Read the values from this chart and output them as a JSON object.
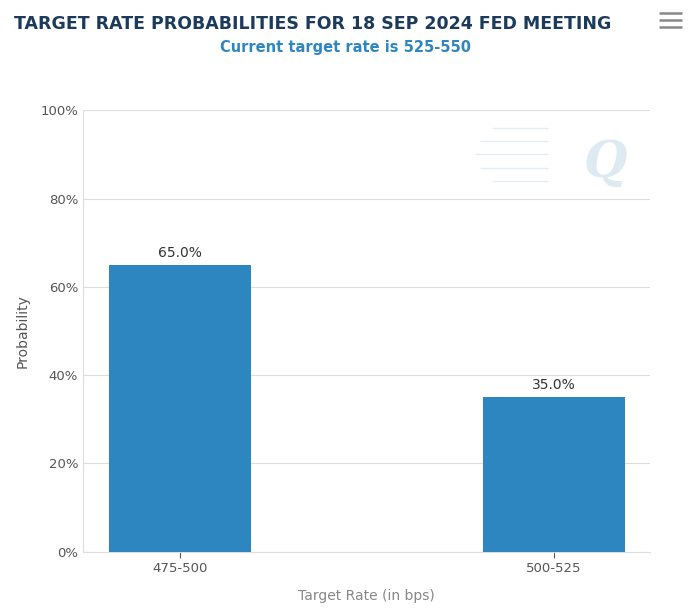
{
  "title": "TARGET RATE PROBABILITIES FOR 18 SEP 2024 FED MEETING",
  "subtitle": "Current target rate is 525-550",
  "categories": [
    "475-500",
    "500-525"
  ],
  "values": [
    65.0,
    35.0
  ],
  "bar_color": "#2e86c1",
  "xlabel": "Target Rate (in bps)",
  "ylabel": "Probability",
  "ylim": [
    0,
    100
  ],
  "ytick_values": [
    0,
    20,
    40,
    60,
    80,
    100
  ],
  "title_color": "#1b3a5c",
  "subtitle_color": "#2e86c1",
  "xlabel_color": "#888888",
  "ylabel_color": "#555555",
  "tick_color": "#555555",
  "grid_color": "#dddddd",
  "bg_color": "#ffffff",
  "title_fontsize": 12.5,
  "subtitle_fontsize": 10.5,
  "axis_label_fontsize": 10,
  "tick_fontsize": 9.5,
  "bar_label_fontsize": 10,
  "bar_width": 0.38,
  "bar_spacing": 1.0,
  "watermark_color": "#c8dce8",
  "watermark_alpha": 0.6,
  "menu_color": "#888888"
}
